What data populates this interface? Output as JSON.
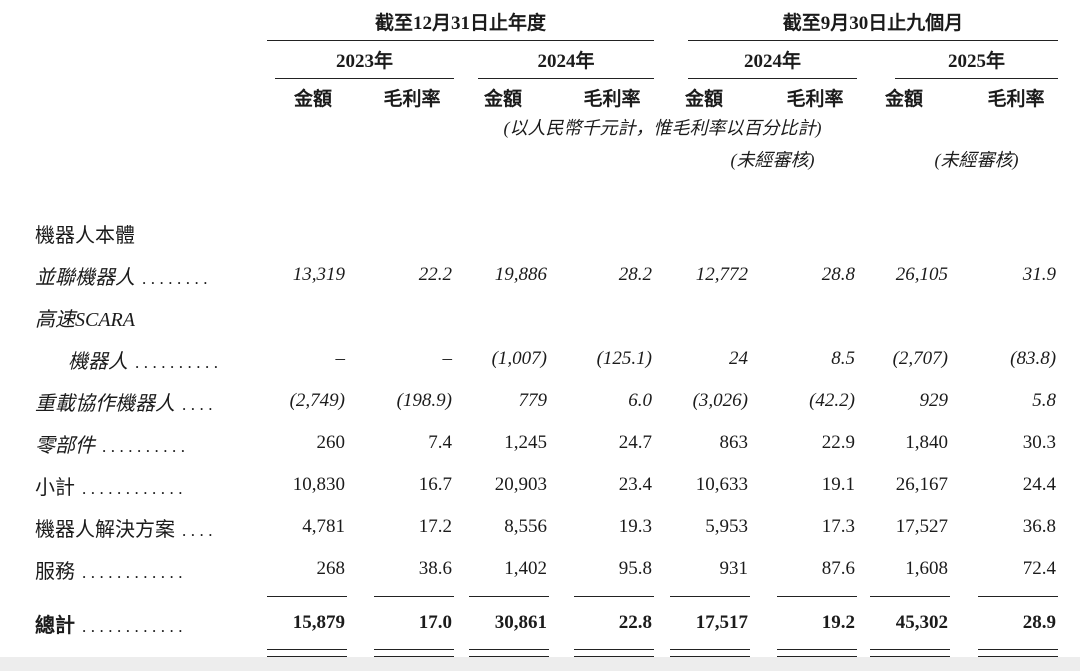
{
  "colors": {
    "text": "#1b1b1b",
    "rule": "#222222",
    "page_bg": "#ffffff",
    "bottom_strip": "#ededed"
  },
  "table": {
    "groups": [
      {
        "title": "截至12月31日止年度",
        "years": [
          "2023年",
          "2024年"
        ]
      },
      {
        "title": "截至9月30日止九個月",
        "years": [
          "2024年",
          "2025年"
        ]
      }
    ],
    "amount_header": "金額",
    "margin_header": "毛利率",
    "note": "(以人民幣千元計，惟毛利率以百分比計)",
    "unaudited": "(未經審核)",
    "rows": [
      {
        "label": "機器人本體",
        "dots": "",
        "indent": false,
        "label_style": "normal",
        "values_style": "normal",
        "values": [],
        "rule_below": null
      },
      {
        "label": "並聯機器人",
        "dots": "........",
        "indent": false,
        "label_style": "italic",
        "values_style": "italic",
        "values": [
          "13,319",
          "22.2",
          "19,886",
          "28.2",
          "12,772",
          "28.8",
          "26,105",
          "31.9"
        ],
        "rule_below": null
      },
      {
        "label": "高速SCARA",
        "dots": "",
        "indent": false,
        "label_style": "italic",
        "values_style": "italic",
        "values": [],
        "rule_below": null
      },
      {
        "label": "機器人",
        "dots": "..........",
        "indent": true,
        "label_style": "italic",
        "values_style": "italic",
        "values": [
          "–",
          "–",
          "(1,007)",
          "(125.1)",
          "24",
          "8.5",
          "(2,707)",
          "(83.8)"
        ],
        "rule_below": null
      },
      {
        "label": "重載協作機器人",
        "dots": "....",
        "indent": false,
        "label_style": "italic",
        "values_style": "italic",
        "values": [
          "(2,749)",
          "(198.9)",
          "779",
          "6.0",
          "(3,026)",
          "(42.2)",
          "929",
          "5.8"
        ],
        "rule_below": null
      },
      {
        "label": "零部件",
        "dots": "..........",
        "indent": false,
        "label_style": "italic",
        "values_style": "normal",
        "values": [
          "260",
          "7.4",
          "1,245",
          "24.7",
          "863",
          "22.9",
          "1,840",
          "30.3"
        ],
        "rule_below": null
      },
      {
        "label": "小計",
        "dots": "............",
        "indent": false,
        "label_style": "normal",
        "values_style": "normal",
        "values": [
          "10,830",
          "16.7",
          "20,903",
          "23.4",
          "10,633",
          "19.1",
          "26,167",
          "24.4"
        ],
        "rule_below": null
      },
      {
        "label": "機器人解決方案",
        "dots": "....",
        "indent": false,
        "label_style": "normal",
        "values_style": "normal",
        "values": [
          "4,781",
          "17.2",
          "8,556",
          "19.3",
          "5,953",
          "17.3",
          "17,527",
          "36.8"
        ],
        "rule_below": null
      },
      {
        "label": "服務",
        "dots": "............",
        "indent": false,
        "label_style": "normal",
        "values_style": "normal",
        "values": [
          "268",
          "38.6",
          "1,402",
          "95.8",
          "931",
          "87.6",
          "1,608",
          "72.4"
        ],
        "rule_below": "single"
      },
      {
        "label": "總計",
        "dots": "............",
        "indent": false,
        "label_style": "bold",
        "values_style": "bold",
        "values": [
          "15,879",
          "17.0",
          "30,861",
          "22.8",
          "17,517",
          "19.2",
          "45,302",
          "28.9"
        ],
        "rule_below": "double"
      }
    ]
  }
}
